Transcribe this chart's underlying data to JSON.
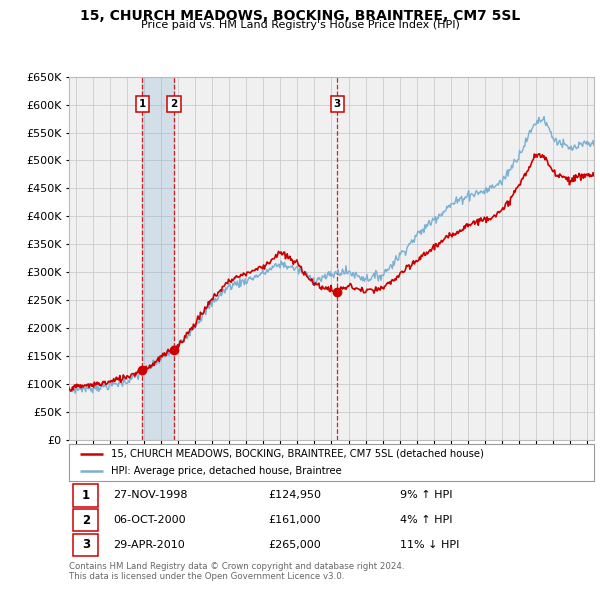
{
  "title": "15, CHURCH MEADOWS, BOCKING, BRAINTREE, CM7 5SL",
  "subtitle": "Price paid vs. HM Land Registry's House Price Index (HPI)",
  "ylim": [
    0,
    650000
  ],
  "yticks": [
    0,
    50000,
    100000,
    150000,
    200000,
    250000,
    300000,
    350000,
    400000,
    450000,
    500000,
    550000,
    600000,
    650000
  ],
  "xlim_start": 1994.6,
  "xlim_end": 2025.4,
  "legend_line1": "15, CHURCH MEADOWS, BOCKING, BRAINTREE, CM7 5SL (detached house)",
  "legend_line2": "HPI: Average price, detached house, Braintree",
  "footer1": "Contains HM Land Registry data © Crown copyright and database right 2024.",
  "footer2": "This data is licensed under the Open Government Licence v3.0.",
  "sales": [
    {
      "num": 1,
      "date": "27-NOV-1998",
      "price": 124950,
      "pct": "9%",
      "dir": "↑",
      "x": 1998.9
    },
    {
      "num": 2,
      "date": "06-OCT-2000",
      "price": 161000,
      "pct": "4%",
      "dir": "↑",
      "x": 2000.76
    },
    {
      "num": 3,
      "date": "29-APR-2010",
      "price": 265000,
      "pct": "11%",
      "dir": "↓",
      "x": 2010.33
    }
  ],
  "property_color": "#cc0000",
  "hpi_color": "#7ab0d4",
  "vline_color": "#cc0000",
  "shade_color": "#ddeeff",
  "background_color": "#ffffff",
  "chart_bg": "#f5f5f5",
  "grid_color": "#cccccc"
}
